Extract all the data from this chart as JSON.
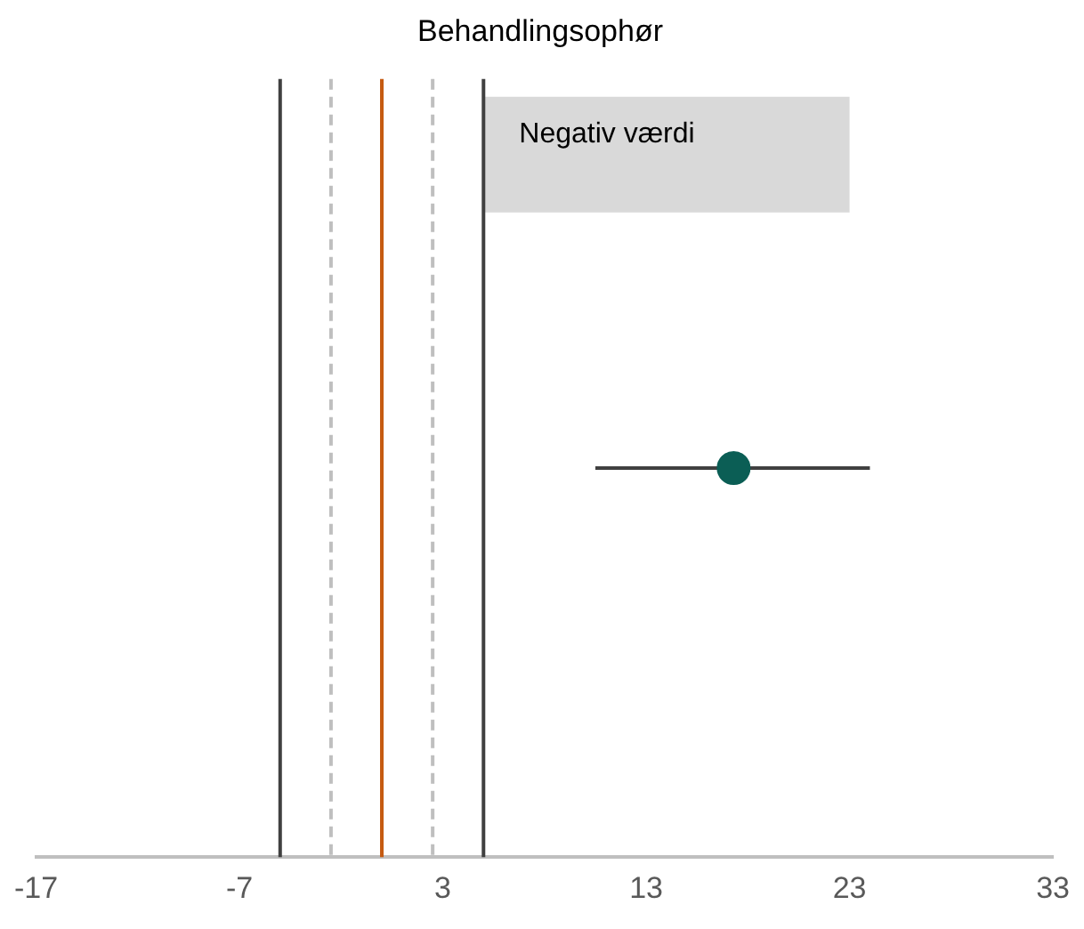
{
  "chart_data": {
    "type": "scatter",
    "title": "Behandlingsophør",
    "orientation": "horizontal",
    "categories": [
      null
    ],
    "values": [
      17.3
    ],
    "color": "#0b5e55",
    "marker": "circle",
    "errors": [
      [
        10.5,
        24
      ]
    ],
    "xlim": [
      -17,
      33
    ],
    "xticks": [
      -17,
      -7,
      3,
      13,
      23,
      33
    ],
    "grid": false,
    "legend": false,
    "ref_lines": [
      {
        "axis": "x",
        "value": -5,
        "color": "#404040",
        "line_style": "solid"
      },
      {
        "axis": "x",
        "value": -2.5,
        "color": "#bfbfbf",
        "line_style": "dashed"
      },
      {
        "axis": "x",
        "value": 0,
        "color": "#c55a11",
        "line_style": "solid"
      },
      {
        "axis": "x",
        "value": 2.5,
        "color": "#bfbfbf",
        "line_style": "dashed"
      },
      {
        "axis": "x",
        "value": 5,
        "color": "#404040",
        "line_style": "solid"
      }
    ],
    "bands": [
      {
        "axis": "x",
        "from": 5,
        "to": 23,
        "label": "Negativ værdi",
        "color": "#d9d9d9"
      }
    ]
  }
}
